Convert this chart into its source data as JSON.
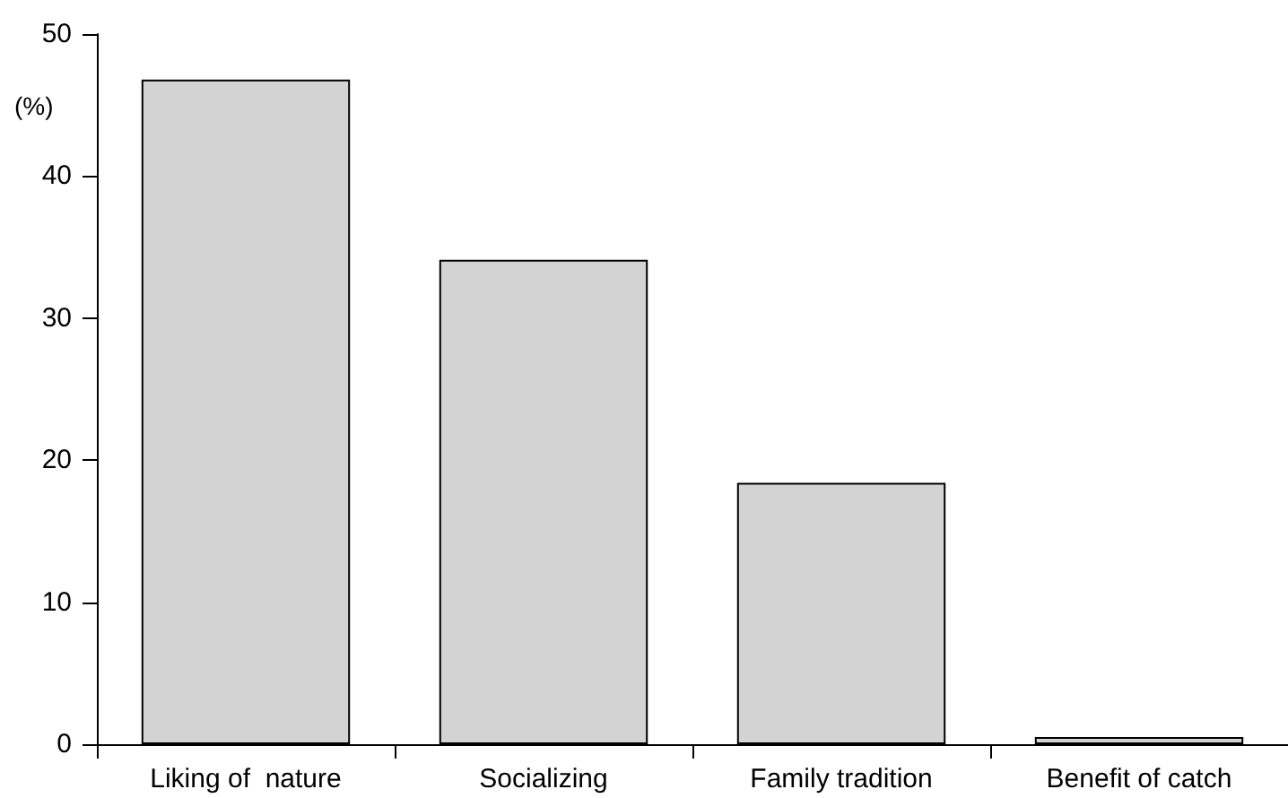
{
  "chart_data": {
    "type": "bar",
    "ylabel": "(%)",
    "categories": [
      "Liking of  nature",
      "Socializing",
      "Family tradition",
      "Benefit of catch"
    ],
    "values": [
      46.8,
      34.1,
      18.4,
      0.5
    ],
    "color": "#d3d3d3",
    "ylim": [
      0,
      50
    ],
    "yticks": [
      0,
      10,
      20,
      30,
      40,
      50
    ],
    "grid": false
  }
}
